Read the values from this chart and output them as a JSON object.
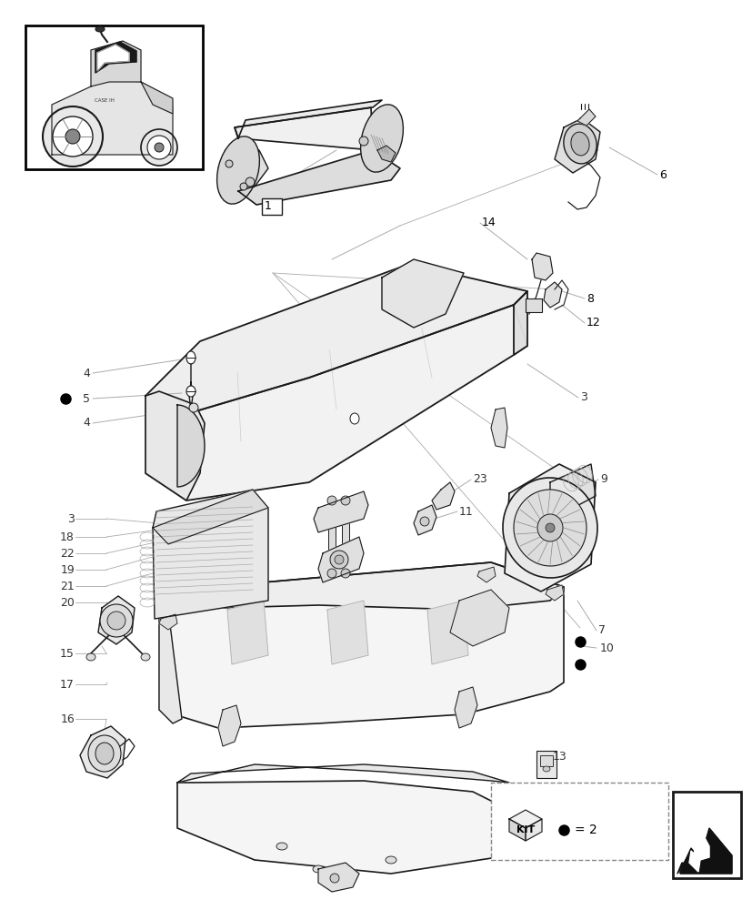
{
  "bg": "#ffffff",
  "lc": "#1a1a1a",
  "glc": "#aaaaaa",
  "flc": "#cccccc",
  "parts_color": "#f8f8f8",
  "shadow_color": "#e0e0e0"
}
